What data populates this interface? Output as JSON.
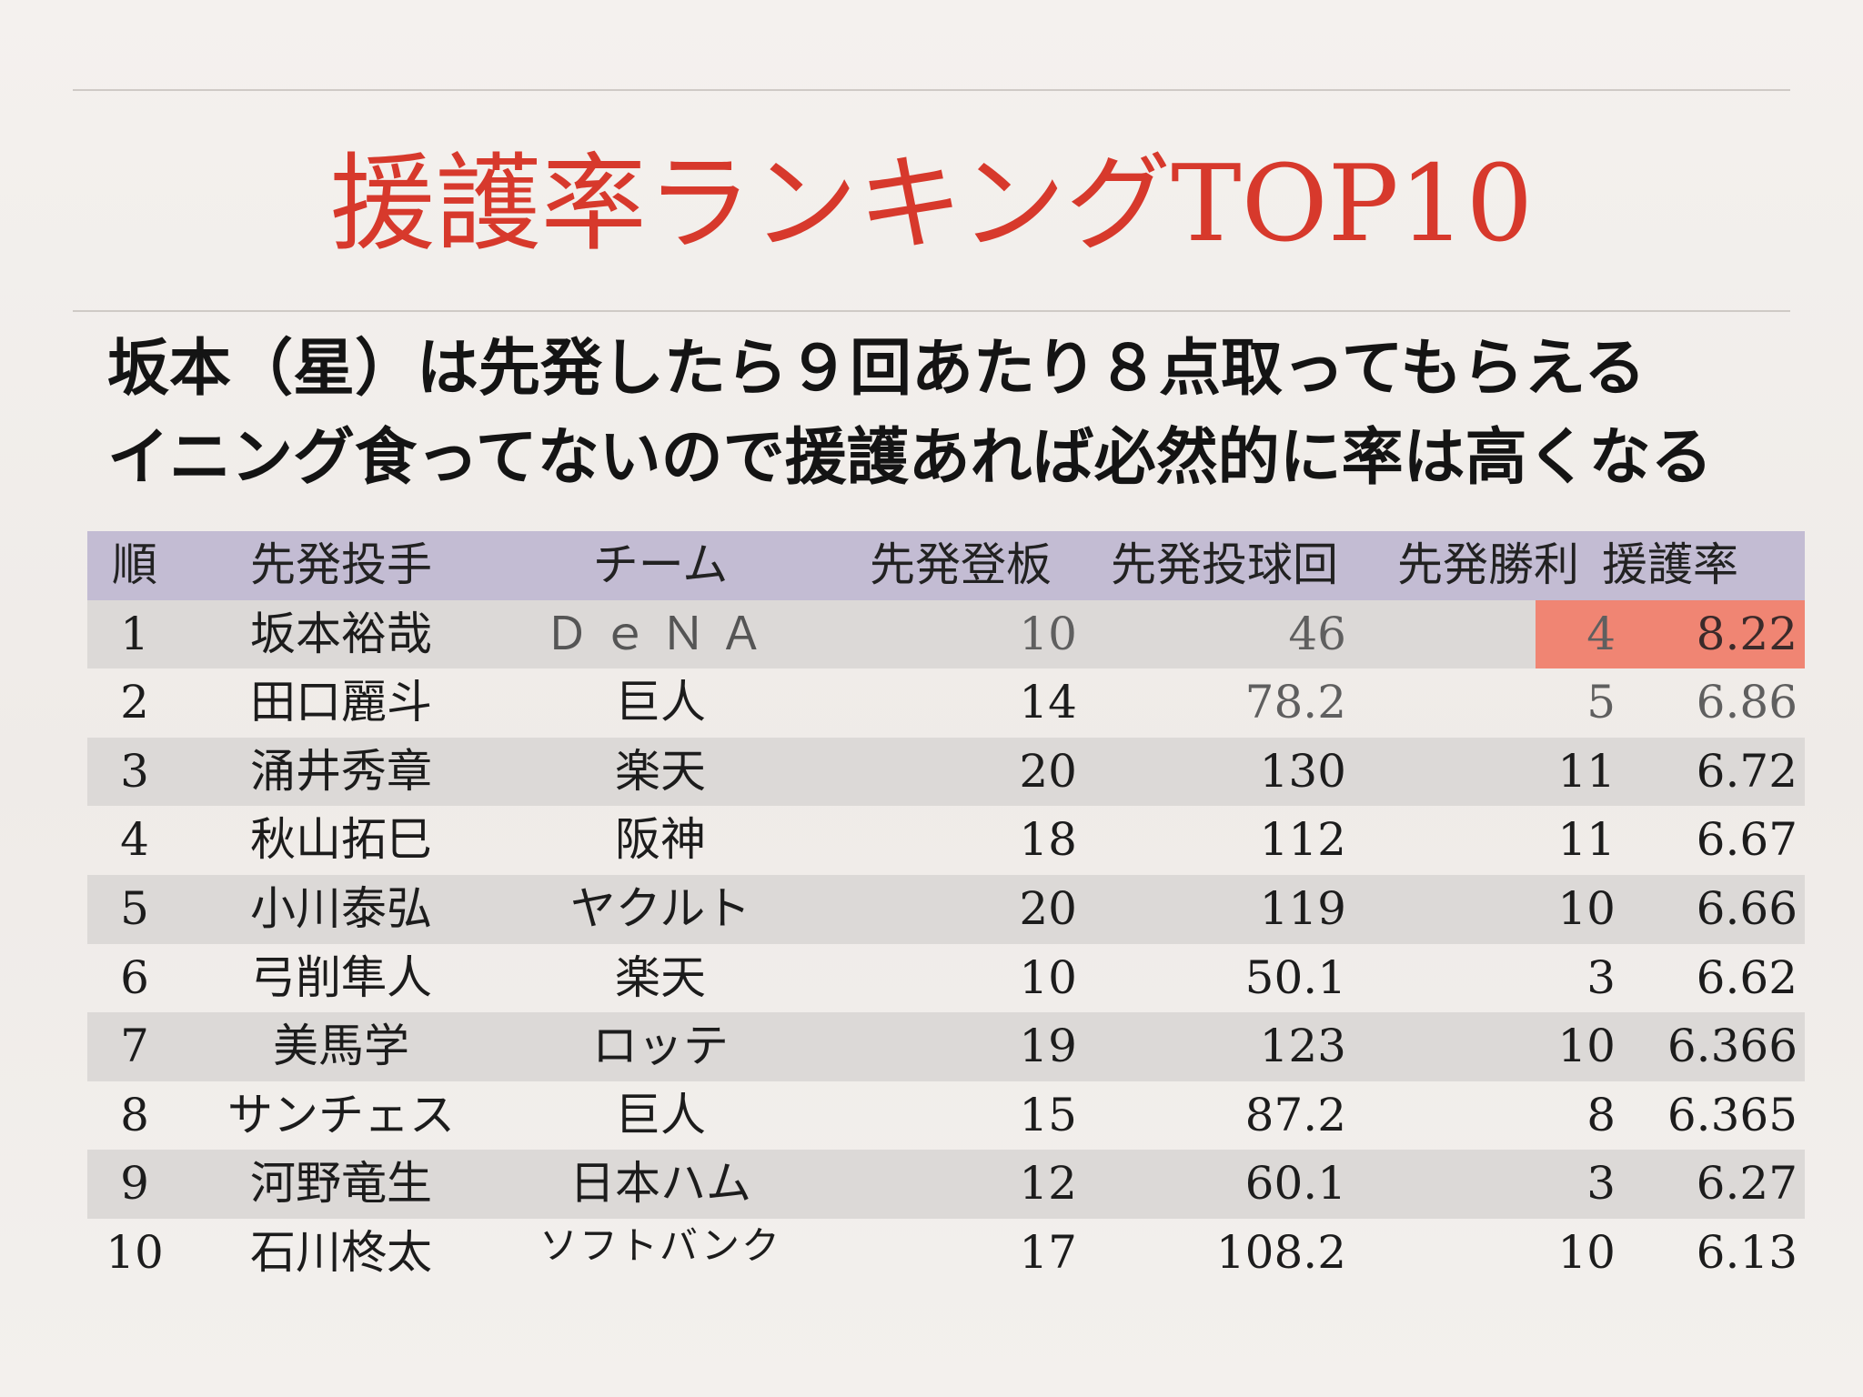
{
  "title": "援護率ランキングTOP10",
  "subtitle": {
    "line1": "坂本（星）は先発したら９回あたり８点取ってもらえる",
    "line2": "イニング食ってないので援護あれば必然的に率は高くなる"
  },
  "table": {
    "headers": [
      "順",
      "先発投手",
      "チーム",
      "先発登板",
      "先発投球回",
      "先発勝利",
      "援護率"
    ],
    "rows": [
      {
        "rank": "1",
        "pitcher": "坂本裕哉",
        "team": "ＤｅＮＡ",
        "starts": "10",
        "innings": "46",
        "wins": "4",
        "rate": "8.22"
      },
      {
        "rank": "2",
        "pitcher": "田口麗斗",
        "team": "巨人",
        "starts": "14",
        "innings": "78.2",
        "wins": "5",
        "rate": "6.86"
      },
      {
        "rank": "3",
        "pitcher": "涌井秀章",
        "team": "楽天",
        "starts": "20",
        "innings": "130",
        "wins": "11",
        "rate": "6.72"
      },
      {
        "rank": "4",
        "pitcher": "秋山拓巳",
        "team": "阪神",
        "starts": "18",
        "innings": "112",
        "wins": "11",
        "rate": "6.67"
      },
      {
        "rank": "5",
        "pitcher": "小川泰弘",
        "team": "ヤクルト",
        "starts": "20",
        "innings": "119",
        "wins": "10",
        "rate": "6.66"
      },
      {
        "rank": "6",
        "pitcher": "弓削隼人",
        "team": "楽天",
        "starts": "10",
        "innings": "50.1",
        "wins": "3",
        "rate": "6.62"
      },
      {
        "rank": "7",
        "pitcher": "美馬学",
        "team": "ロッテ",
        "starts": "19",
        "innings": "123",
        "wins": "10",
        "rate": "6.366"
      },
      {
        "rank": "8",
        "pitcher": "サンチェス",
        "team": "巨人",
        "starts": "15",
        "innings": "87.2",
        "wins": "8",
        "rate": "6.365"
      },
      {
        "rank": "9",
        "pitcher": "河野竜生",
        "team": "日本ハム",
        "starts": "12",
        "innings": "60.1",
        "wins": "3",
        "rate": "6.27"
      },
      {
        "rank": "10",
        "pitcher": "石川柊太",
        "team": "ソフトバンク",
        "starts": "17",
        "innings": "108.2",
        "wins": "10",
        "rate": "6.13"
      }
    ]
  },
  "colors": {
    "title": "#d7392c",
    "header_bg": "#c3bcd3",
    "alt_row_bg": "#dcd9d7",
    "highlight_bg": "#f08573"
  }
}
